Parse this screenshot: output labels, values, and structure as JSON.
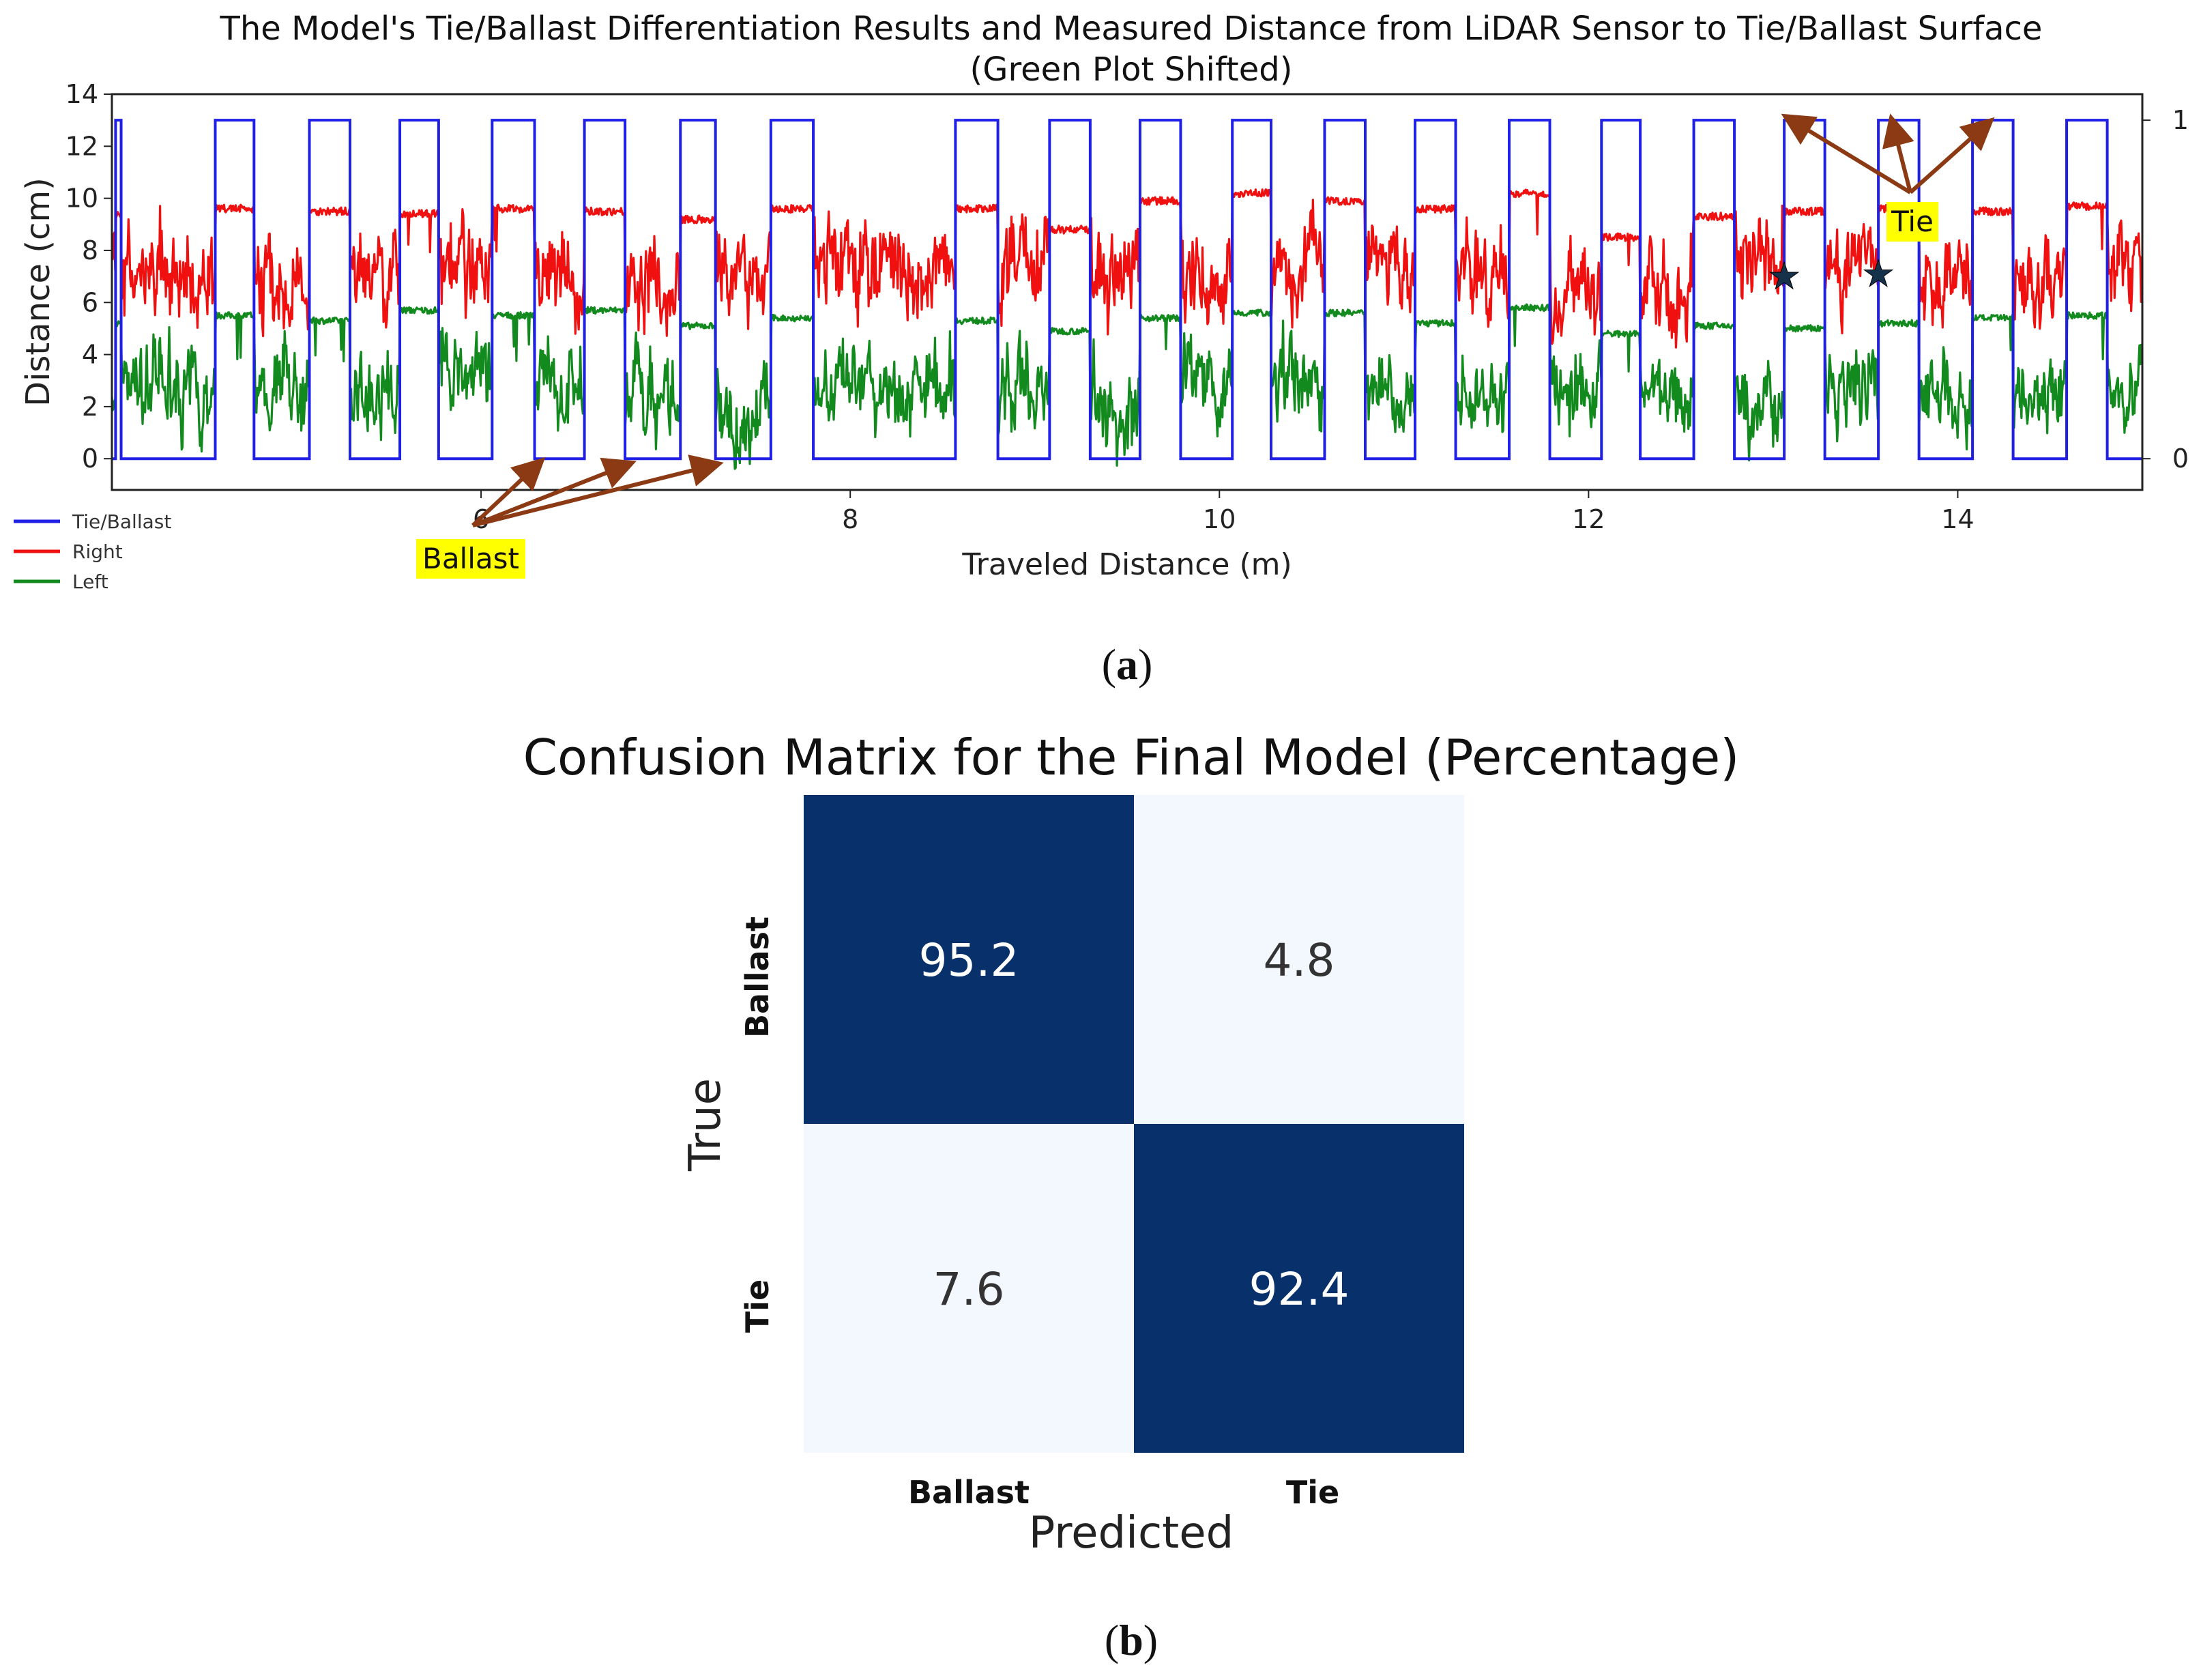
{
  "chart_data": [
    {
      "type": "line",
      "panel_caption": "(a)",
      "caption_letter": "a",
      "title_line1": "The Model's Tie/Ballast Differentiation Results and Measured Distance from LiDAR Sensor to Tie/Ballast Surface",
      "title_line2": "(Green Plot Shifted)",
      "xlabel": "Traveled Distance (m)",
      "ylabel": "Distance (cm)",
      "xlim": [
        4.0,
        15.0
      ],
      "ylim": [
        -1.2,
        14.0
      ],
      "x_ticks": [
        "6",
        "8",
        "10",
        "12",
        "14"
      ],
      "y_ticks": [
        "0",
        "2",
        "4",
        "6",
        "8",
        "10",
        "12",
        "14"
      ],
      "y2_ticks": [
        "0",
        "1"
      ],
      "legend": [
        "Tie/Ballast",
        "Right",
        "Left"
      ],
      "colors": {
        "tie_ballast": "#1f1fe6",
        "right": "#f01010",
        "left": "#128a1e",
        "arrow": "#8b3a14",
        "highlight": "#ffff00"
      },
      "tie_intervals": [
        [
          4.02,
          4.05
        ],
        [
          4.56,
          4.77
        ],
        [
          5.07,
          5.29
        ],
        [
          5.56,
          5.77
        ],
        [
          6.06,
          6.29
        ],
        [
          6.56,
          6.78
        ],
        [
          7.08,
          7.27
        ],
        [
          7.57,
          7.8
        ],
        [
          8.57,
          8.8
        ],
        [
          9.08,
          9.3
        ],
        [
          9.57,
          9.79
        ],
        [
          10.07,
          10.28
        ],
        [
          10.57,
          10.79
        ],
        [
          11.06,
          11.28
        ],
        [
          11.57,
          11.79
        ],
        [
          12.07,
          12.28
        ],
        [
          12.57,
          12.79
        ],
        [
          13.06,
          13.28
        ],
        [
          13.57,
          13.79
        ],
        [
          14.08,
          14.3
        ],
        [
          14.59,
          14.81
        ]
      ],
      "series": [
        {
          "name": "Right",
          "tie_level_cm": [
            9.4,
            9.6,
            9.5,
            9.4,
            9.6,
            9.5,
            9.2,
            9.6,
            9.6,
            8.8,
            9.9,
            10.2,
            9.9,
            9.6,
            10.2,
            8.5,
            9.3,
            9.5,
            9.6,
            9.5,
            9.7
          ],
          "ballast_level_cm": [
            7.0,
            7.0,
            7.0,
            7.0,
            7.0,
            7.0,
            7.3,
            7.4,
            7.6,
            6.8,
            7.1,
            7.3,
            7.2,
            7.1,
            6.5,
            6.6,
            7.3,
            7.0,
            7.0,
            6.9,
            7.0
          ]
        },
        {
          "name": "Left",
          "tie_level_cm": [
            5.2,
            5.5,
            5.3,
            5.7,
            5.5,
            5.7,
            5.1,
            5.4,
            5.3,
            4.9,
            5.4,
            5.6,
            5.6,
            5.2,
            5.8,
            4.8,
            5.1,
            5.0,
            5.2,
            5.4,
            5.5
          ],
          "ballast_level_cm": [
            2.6,
            2.7,
            2.7,
            2.9,
            2.7,
            2.3,
            1.8,
            2.6,
            2.6,
            1.8,
            2.8,
            3.2,
            2.9,
            2.4,
            2.8,
            2.6,
            1.6,
            3.0,
            2.7,
            2.6,
            2.9
          ]
        },
        {
          "name": "Tie/Ballast",
          "values": "1 on tie intervals, 0 elsewhere"
        }
      ],
      "annotations": {
        "ballast_label": "Ballast",
        "tie_label": "Tie",
        "star_symbol": "★",
        "ballast_arrow_targets": [
          [
            6.3,
            0.0
          ],
          [
            6.78,
            0.0
          ],
          [
            7.25,
            0.0
          ]
        ],
        "tie_arrow_targets": [
          [
            13.1,
            13.0
          ],
          [
            13.65,
            12.8
          ],
          [
            14.15,
            12.8
          ]
        ],
        "star_points": [
          [
            13.06,
            7.0
          ],
          [
            13.57,
            7.1
          ]
        ]
      }
    },
    {
      "type": "heatmap",
      "panel_caption": "(b)",
      "caption_letter": "b",
      "title": "Confusion Matrix for the Final Model (Percentage)",
      "xlabel": "Predicted",
      "ylabel": "True",
      "x_categories": [
        "Ballast",
        "Tie"
      ],
      "y_categories": [
        "Ballast",
        "Tie"
      ],
      "values": [
        [
          95.2,
          4.8
        ],
        [
          7.6,
          92.4
        ]
      ],
      "value_labels": [
        [
          "95.2",
          "4.8"
        ],
        [
          "7.6",
          "92.4"
        ]
      ],
      "colors": {
        "high": "#08306b",
        "low": "#f2f8fd",
        "high_text": "#ffffff",
        "low_text": "#333333"
      }
    }
  ]
}
